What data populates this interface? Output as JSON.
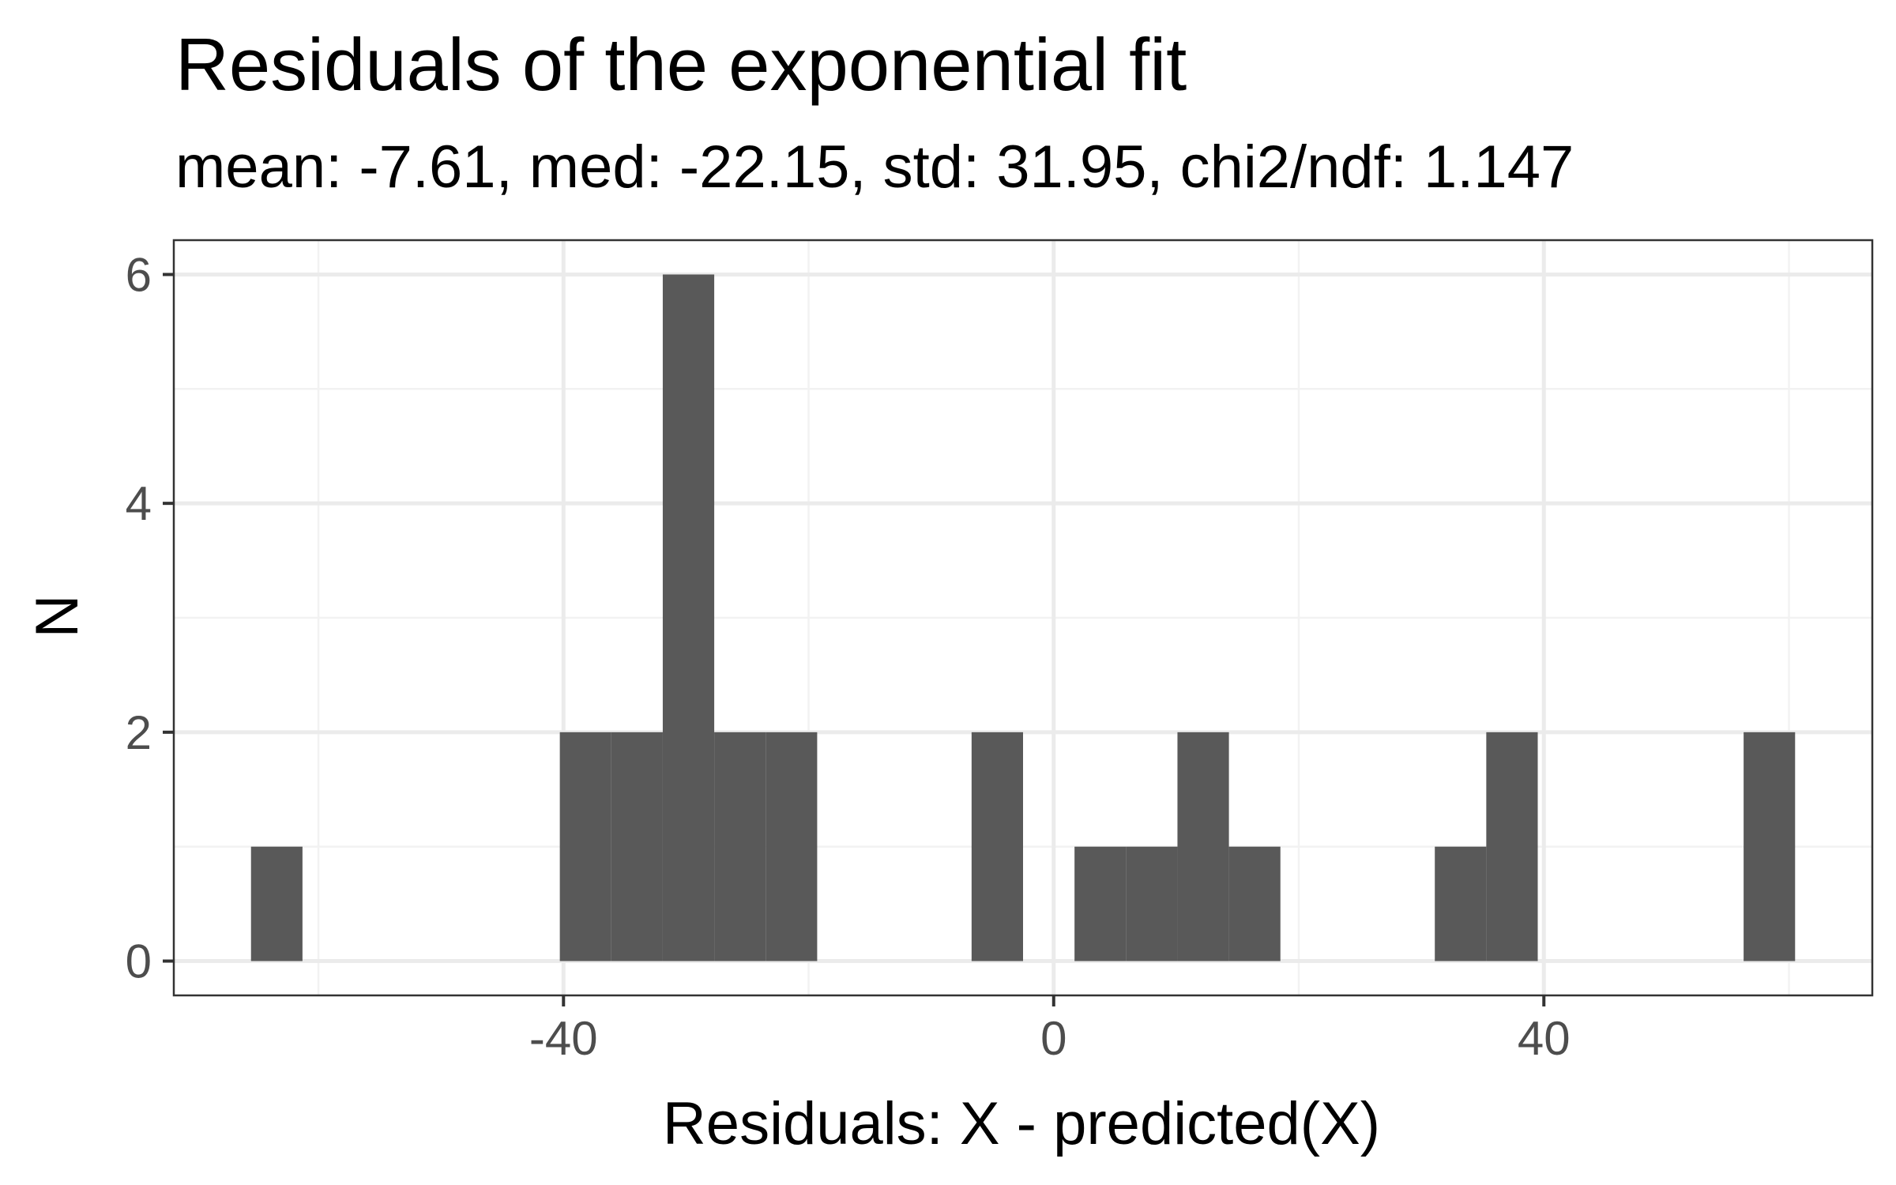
{
  "chart_data": {
    "type": "bar",
    "title": "Residuals of the exponential fit",
    "subtitle": "mean: -7.61, med: -22.15, std: 31.95, chi2/ndf: 1.147",
    "xlabel": "Residuals: X - predicted(X)",
    "ylabel": "N",
    "bin_width": 4.2,
    "bins": [
      {
        "x0": -65.5,
        "x1": -61.3,
        "count": 1
      },
      {
        "x0": -40.3,
        "x1": -36.1,
        "count": 2
      },
      {
        "x0": -36.1,
        "x1": -31.9,
        "count": 2
      },
      {
        "x0": -31.9,
        "x1": -27.7,
        "count": 6
      },
      {
        "x0": -27.7,
        "x1": -23.5,
        "count": 2
      },
      {
        "x0": -23.5,
        "x1": -19.3,
        "count": 2
      },
      {
        "x0": -6.7,
        "x1": -2.5,
        "count": 2
      },
      {
        "x0": 1.7,
        "x1": 5.9,
        "count": 1
      },
      {
        "x0": 5.9,
        "x1": 10.1,
        "count": 1
      },
      {
        "x0": 10.1,
        "x1": 14.3,
        "count": 2
      },
      {
        "x0": 14.3,
        "x1": 18.5,
        "count": 1
      },
      {
        "x0": 31.1,
        "x1": 35.3,
        "count": 1
      },
      {
        "x0": 35.3,
        "x1": 39.5,
        "count": 2
      },
      {
        "x0": 56.3,
        "x1": 60.5,
        "count": 2
      }
    ],
    "xlim": [
      -71.8,
      66.8
    ],
    "ylim": [
      -0.3,
      6.3
    ],
    "x_ticks": [
      {
        "value": -40,
        "label": "-40"
      },
      {
        "value": 0,
        "label": "0"
      },
      {
        "value": 40,
        "label": "40"
      }
    ],
    "x_minor_ticks": [
      -60,
      -20,
      20,
      60
    ],
    "y_ticks": [
      {
        "value": 0,
        "label": "0"
      },
      {
        "value": 2,
        "label": "2"
      },
      {
        "value": 4,
        "label": "4"
      },
      {
        "value": 6,
        "label": "6"
      }
    ],
    "y_minor_ticks": [
      1,
      3,
      5
    ],
    "grid": true,
    "colors": {
      "bar": "#595959",
      "grid_major": "#ebebeb",
      "grid_minor": "#f2f2f2",
      "panel_border": "#333333",
      "tick_label": "#4d4d4d",
      "axis_title": "#000000"
    }
  }
}
